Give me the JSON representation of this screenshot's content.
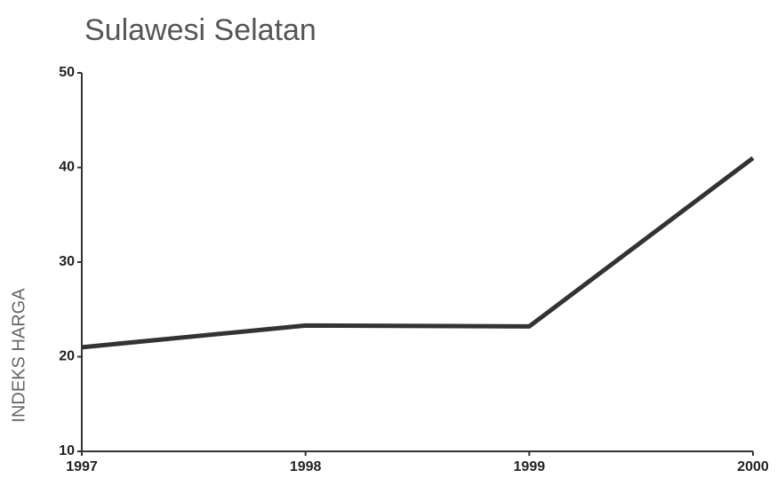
{
  "chart_data": {
    "type": "line",
    "title": "Sulawesi Selatan",
    "y_label": "INDEKS HARGA",
    "x": [
      1997,
      1998,
      1999,
      2000
    ],
    "xlim": [
      1997,
      2000
    ],
    "xticks": [
      1997,
      1998,
      1999,
      2000
    ],
    "series": [
      {
        "name": "Sulawesi Selatan",
        "color": "#333333",
        "values": [
          21.0,
          23.3,
          23.2,
          41.0
        ]
      }
    ],
    "ylim": [
      10,
      50
    ],
    "yticks": [
      10,
      20,
      30,
      40,
      50
    ]
  }
}
